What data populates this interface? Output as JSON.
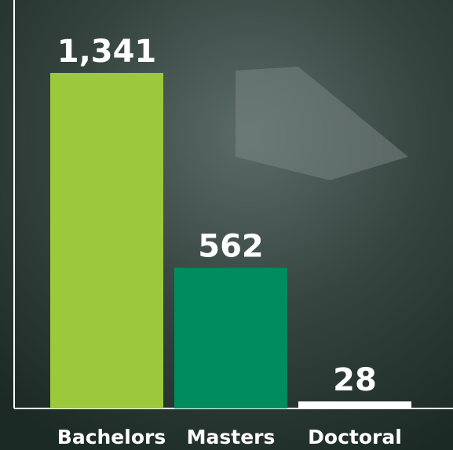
{
  "chart_data": {
    "type": "bar",
    "categories": [
      "Bachelors",
      "Masters",
      "Doctoral"
    ],
    "values": [
      1341,
      562,
      28
    ],
    "value_labels": [
      "1,341",
      "562",
      "28"
    ],
    "colors": [
      "#9bc93b",
      "#008c5f",
      "#ffffff"
    ]
  }
}
